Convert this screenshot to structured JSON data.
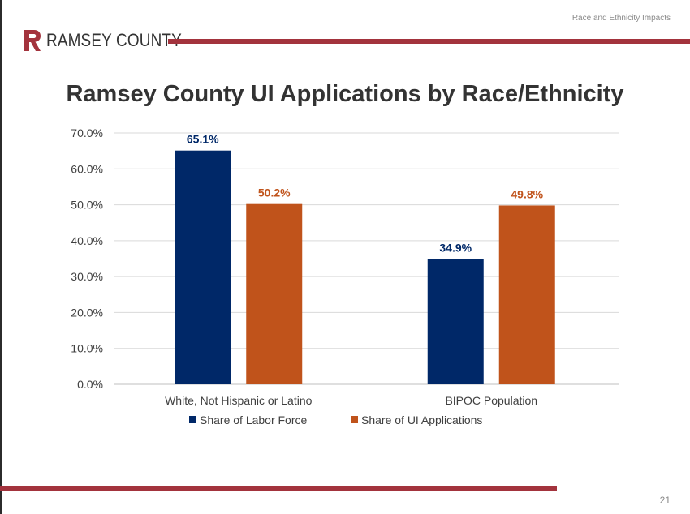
{
  "header": {
    "section_title": "Race and Ethnicity Impacts",
    "logo_text": "RAMSEY COUNTY"
  },
  "footer": {
    "page_number": "21"
  },
  "colors": {
    "brand_red": "#a3333d",
    "series_labor": "#002868",
    "series_ui": "#c0531b",
    "title_text": "#333333"
  },
  "chart_data": {
    "type": "bar",
    "title": "Ramsey County UI Applications by Race/Ethnicity",
    "categories": [
      "White, Not Hispanic or Latino",
      "BIPOC Population"
    ],
    "series": [
      {
        "name": "Share of Labor Force",
        "values": [
          65.1,
          34.9
        ],
        "labels": [
          "65.1%",
          "34.9%"
        ],
        "color": "#002868"
      },
      {
        "name": "Share of UI Applications",
        "values": [
          50.2,
          49.8
        ],
        "labels": [
          "50.2%",
          "49.8%"
        ],
        "color": "#c0531b"
      }
    ],
    "ylim": [
      0,
      70
    ],
    "yticks": [
      "0.0%",
      "10.0%",
      "20.0%",
      "30.0%",
      "40.0%",
      "50.0%",
      "60.0%",
      "70.0%"
    ],
    "grid": true,
    "legend": "bottom"
  }
}
